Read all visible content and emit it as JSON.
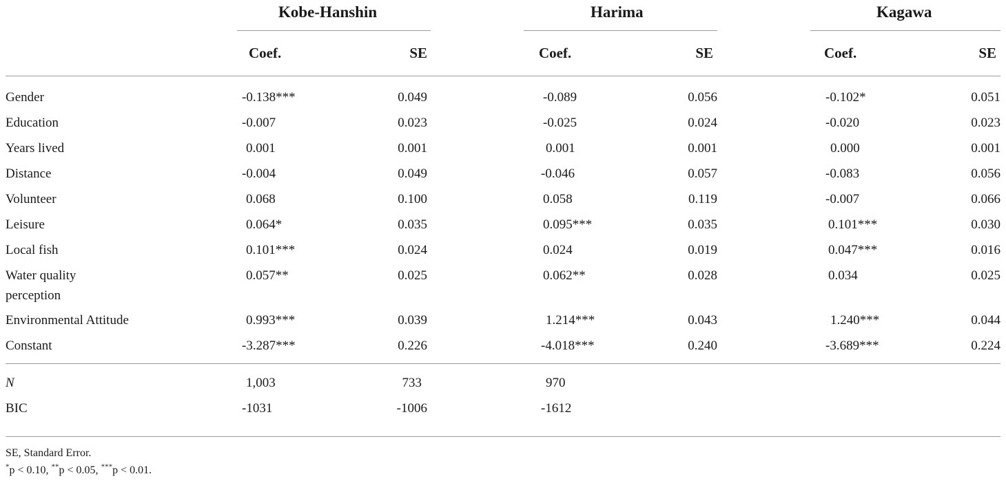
{
  "groups": [
    "Kobe-Hanshin",
    "Harima",
    "Kagawa"
  ],
  "subheaders": {
    "coef": "Coef.",
    "se": "SE"
  },
  "rows": [
    {
      "label": "Gender",
      "values": [
        "-0.138***",
        "0.049",
        "-0.089",
        "0.056",
        "-0.102*",
        "0.051"
      ]
    },
    {
      "label": "Education",
      "values": [
        "-0.007",
        "0.023",
        "-0.025",
        "0.024",
        "-0.020",
        "0.023"
      ]
    },
    {
      "label": "Years lived",
      "values": [
        "0.001",
        "0.001",
        "0.001",
        "0.001",
        "0.000",
        "0.001"
      ]
    },
    {
      "label": "Distance",
      "values": [
        "-0.004",
        "0.049",
        "-0.046",
        "0.057",
        "-0.083",
        "0.056"
      ]
    },
    {
      "label": "Volunteer",
      "values": [
        "0.068",
        "0.100",
        "0.058",
        "0.119",
        "-0.007",
        "0.066"
      ]
    },
    {
      "label": "Leisure",
      "values": [
        "0.064*",
        "0.035",
        "0.095***",
        "0.035",
        "0.101***",
        "0.030"
      ]
    },
    {
      "label": "Local fish",
      "values": [
        "0.101***",
        "0.024",
        "0.024",
        "0.019",
        "0.047***",
        "0.016"
      ]
    },
    {
      "label": "Water quality",
      "label2": "perception",
      "values": [
        "0.057**",
        "0.025",
        "0.062**",
        "0.028",
        "0.034",
        "0.025"
      ]
    },
    {
      "label": "Environmental Attitude",
      "values": [
        "0.993***",
        "0.039",
        "1.214***",
        "0.043",
        "1.240***",
        "0.044"
      ]
    },
    {
      "label": "Constant",
      "values": [
        "-3.287***",
        "0.226",
        "-4.018***",
        "0.240",
        "-3.689***",
        "0.224"
      ]
    }
  ],
  "summary": [
    {
      "label": "N",
      "values": [
        "1,003",
        "733",
        "970"
      ]
    },
    {
      "label": "BIC",
      "values": [
        "-1031",
        "-1006",
        "-1612"
      ]
    }
  ],
  "notes": {
    "line1": "SE, Standard Error.",
    "line2_a": "*",
    "line2_b": "p < 0.10, ",
    "line2_c": "**",
    "line2_d": "p < 0.05, ",
    "line2_e": "***",
    "line2_f": "p < 0.01."
  }
}
